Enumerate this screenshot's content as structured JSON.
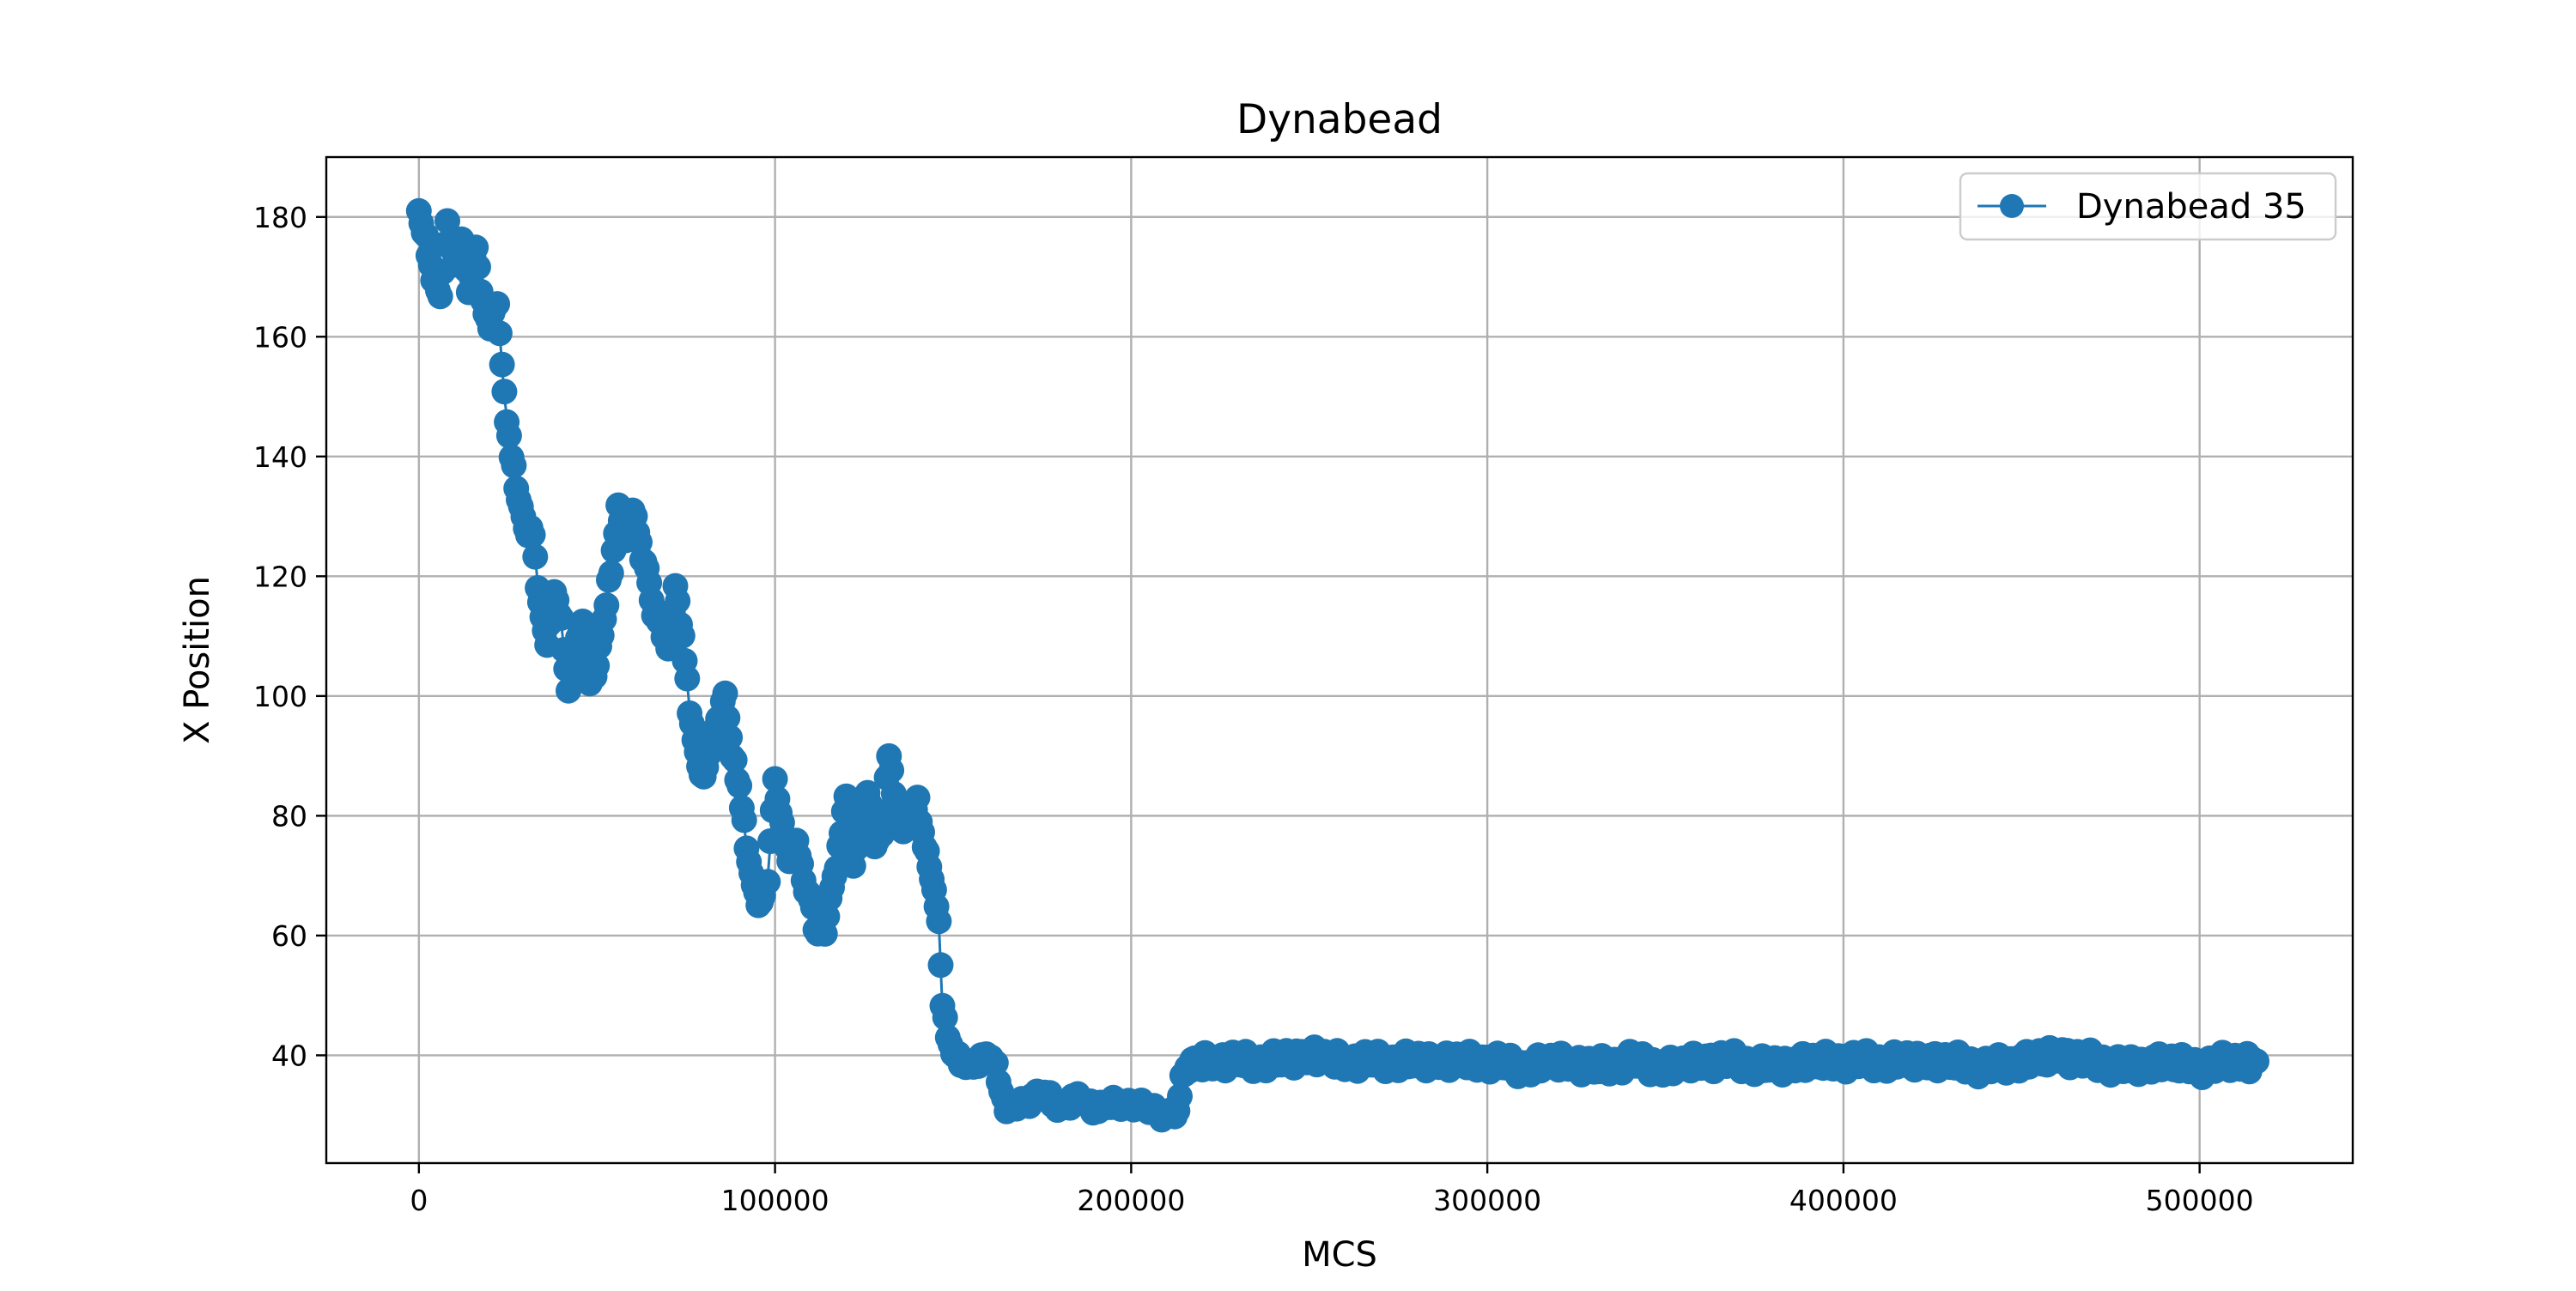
{
  "chart_data": {
    "type": "line",
    "title": "Dynabead",
    "xlabel": "MCS",
    "ylabel": "X Position",
    "xlim": [
      -26000,
      543000
    ],
    "ylim": [
      22,
      190
    ],
    "xticks": [
      0,
      100000,
      200000,
      300000,
      400000,
      500000
    ],
    "xtick_labels": [
      "0",
      "100000",
      "200000",
      "300000",
      "400000",
      "500000"
    ],
    "yticks": [
      40,
      60,
      80,
      100,
      120,
      140,
      160,
      180
    ],
    "ytick_labels": [
      "40",
      "60",
      "80",
      "100",
      "120",
      "140",
      "160",
      "180"
    ],
    "grid": true,
    "legend_position": "top-right",
    "marker": "circle",
    "color": "#1f77b4",
    "series": [
      {
        "name": "Dynabead 35",
        "x": [
          0,
          2000,
          4000,
          6000,
          8000,
          10000,
          12000,
          14000,
          16000,
          18000,
          20000,
          22000,
          24000,
          26000,
          28000,
          30000,
          32000,
          34000,
          36000,
          38000,
          40000,
          42000,
          44000,
          46000,
          48000,
          50000,
          52000,
          54000,
          56000,
          58000,
          60000,
          62000,
          64000,
          66000,
          68000,
          70000,
          72000,
          74000,
          76000,
          78000,
          80000,
          82000,
          84000,
          86000,
          88000,
          90000,
          92000,
          94000,
          96000,
          98000,
          100000,
          102000,
          104000,
          106000,
          108000,
          110000,
          112000,
          114000,
          116000,
          118000,
          120000,
          122000,
          124000,
          126000,
          128000,
          130000,
          132000,
          134000,
          136000,
          138000,
          140000,
          142000,
          144000,
          146000,
          147000,
          150000,
          155000,
          160000,
          162000,
          165000,
          170000,
          175000,
          180000,
          185000,
          190000,
          195000,
          200000,
          205000,
          210000,
          213000,
          215000,
          220000,
          230000,
          240000,
          250000,
          260000,
          270000,
          280000,
          290000,
          300000,
          310000,
          320000,
          330000,
          340000,
          350000,
          360000,
          370000,
          380000,
          390000,
          400000,
          410000,
          420000,
          430000,
          440000,
          450000,
          460000,
          470000,
          480000,
          490000,
          500000,
          510000,
          516000
        ],
        "y": [
          181,
          176,
          170,
          167,
          179,
          172,
          176,
          168,
          175,
          165,
          162,
          166,
          150,
          140,
          133,
          128,
          127,
          115,
          109,
          118,
          112,
          101,
          108,
          112,
          102,
          105,
          113,
          121,
          131,
          126,
          132,
          125,
          121,
          114,
          112,
          108,
          118,
          110,
          98,
          90,
          86,
          92,
          96,
          100,
          90,
          85,
          75,
          68,
          65,
          70,
          86,
          78,
          73,
          76,
          69,
          66,
          60,
          61,
          68,
          74,
          84,
          72,
          80,
          84,
          75,
          77,
          90,
          82,
          78,
          80,
          82,
          75,
          70,
          62,
          48,
          40,
          38,
          40,
          38,
          31,
          32,
          34,
          31,
          33,
          31,
          32,
          32,
          31,
          30,
          31,
          38,
          39,
          39,
          39,
          40,
          39,
          39,
          39,
          39,
          39,
          38,
          39,
          38,
          39,
          38,
          39,
          39,
          38,
          39,
          39,
          39,
          39,
          39,
          38,
          39,
          40,
          39,
          38,
          39,
          38,
          39,
          39
        ]
      }
    ]
  }
}
